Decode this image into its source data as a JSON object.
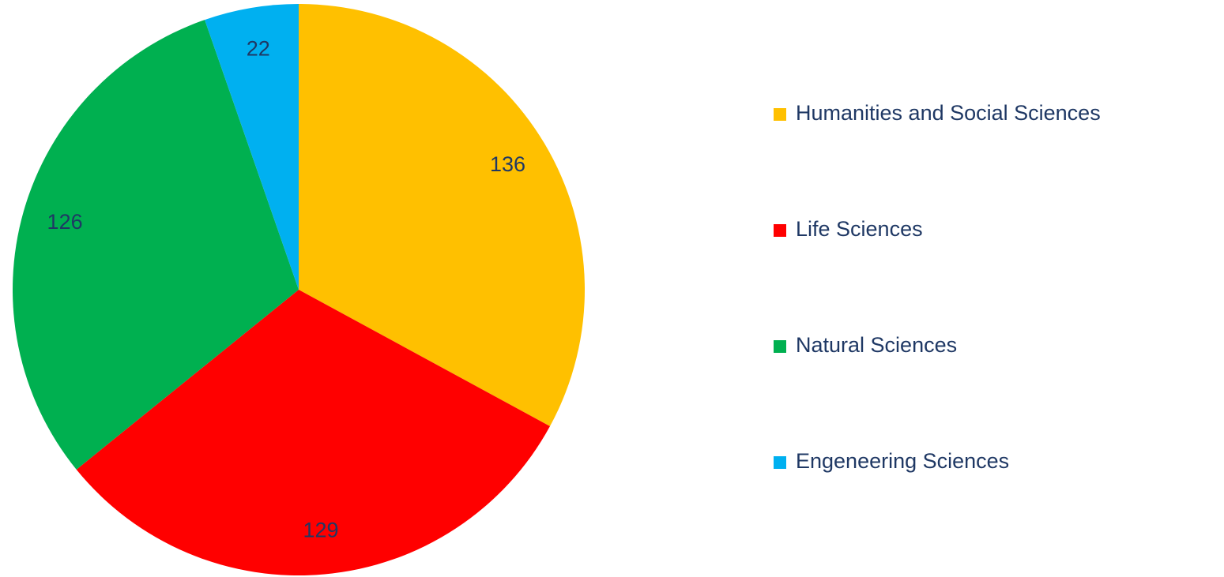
{
  "chart_data": {
    "type": "pie",
    "categories": [
      "Humanities and Social Sciences",
      "Life Sciences",
      "Natural Sciences",
      "Engeneering Sciences"
    ],
    "values": [
      136,
      129,
      126,
      22
    ],
    "colors": [
      "#FFC000",
      "#FF0000",
      "#00B050",
      "#00B0F0"
    ],
    "legend": "right"
  }
}
